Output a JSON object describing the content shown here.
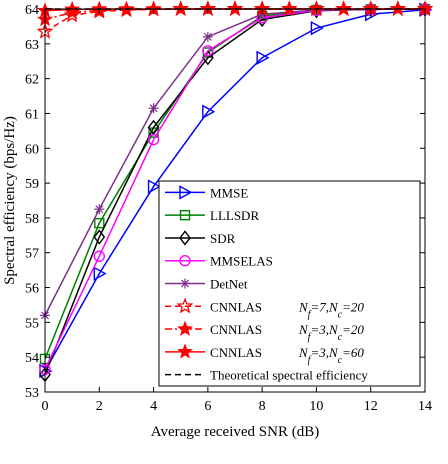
{
  "chart_data": {
    "type": "line",
    "xlabel": "Average received SNR (dB)",
    "ylabel": "Spectral efficiency (bps/Hz)",
    "xlim": [
      0,
      14
    ],
    "ylim": [
      53,
      64
    ],
    "xticks": [
      0,
      2,
      4,
      6,
      8,
      10,
      12,
      14
    ],
    "yticks": [
      53,
      54,
      55,
      56,
      57,
      58,
      59,
      60,
      61,
      62,
      63,
      64
    ],
    "grid": false,
    "legend_position": "bottom-right",
    "series": [
      {
        "name": "MMSE",
        "color": "#0000ff",
        "marker": "triangle-right",
        "dash": "solid",
        "x": [
          0,
          2,
          4,
          6,
          8,
          10,
          12,
          14
        ],
        "y": [
          53.6,
          56.4,
          58.9,
          61.05,
          62.6,
          63.45,
          63.85,
          63.98
        ]
      },
      {
        "name": "LLLSDR",
        "color": "#008000",
        "marker": "square",
        "dash": "solid",
        "x": [
          0,
          2,
          4,
          6,
          8,
          10,
          12,
          14
        ],
        "y": [
          53.95,
          57.85,
          60.45,
          62.75,
          63.8,
          63.97,
          63.99,
          64.0
        ]
      },
      {
        "name": "SDR",
        "color": "#000000",
        "marker": "diamond",
        "dash": "solid",
        "x": [
          0,
          2,
          4,
          6,
          8,
          10,
          12,
          14
        ],
        "y": [
          53.5,
          57.45,
          60.6,
          62.6,
          63.7,
          63.95,
          63.99,
          64.0
        ]
      },
      {
        "name": "MMSELAS",
        "color": "#ff00ff",
        "marker": "circle",
        "dash": "solid",
        "x": [
          0,
          2,
          4,
          6,
          8,
          10,
          12,
          14
        ],
        "y": [
          53.65,
          56.9,
          60.25,
          62.8,
          63.75,
          63.96,
          63.99,
          64.0
        ]
      },
      {
        "name": "DetNet",
        "color": "#7e2f8e",
        "marker": "asterisk",
        "dash": "solid",
        "x": [
          0,
          2,
          4,
          6,
          8,
          10,
          12,
          14
        ],
        "y": [
          55.2,
          58.25,
          61.15,
          63.2,
          63.85,
          63.97,
          63.99,
          64.0
        ]
      },
      {
        "name": "CNNLAS",
        "label_sub": "N_f=7,N_c=20",
        "color": "#ff0000",
        "marker": "star-open",
        "dash": "dashed",
        "x": [
          0,
          1,
          2,
          3,
          4,
          5,
          6,
          7,
          8,
          9,
          10,
          11,
          12,
          13,
          14
        ],
        "y": [
          63.35,
          63.82,
          63.93,
          63.97,
          63.99,
          64.0,
          64.0,
          64.0,
          64.0,
          64.0,
          64.0,
          64.0,
          64.0,
          64.0,
          64.0
        ]
      },
      {
        "name": "CNNLAS",
        "label_sub": "N_f=3,N_c=20",
        "color": "#ff0000",
        "marker": "star-filled",
        "dash": "dashdot",
        "x": [
          0,
          1,
          2,
          3,
          4,
          5,
          6,
          7,
          8,
          9,
          10,
          11,
          12,
          13,
          14
        ],
        "y": [
          63.7,
          63.9,
          63.96,
          63.98,
          63.99,
          64.0,
          64.0,
          64.0,
          64.0,
          64.0,
          64.0,
          64.0,
          64.0,
          64.0,
          64.0
        ]
      },
      {
        "name": "CNNLAS",
        "label_sub": "N_f=3,N_c=60",
        "color": "#ff0000",
        "marker": "star-filled",
        "dash": "solid",
        "x": [
          0,
          1,
          2,
          3,
          4,
          5,
          6,
          7,
          8,
          9,
          10,
          11,
          12,
          13,
          14
        ],
        "y": [
          63.95,
          63.99,
          64.0,
          64.0,
          64.0,
          64.0,
          64.0,
          64.0,
          64.0,
          64.0,
          64.0,
          64.0,
          64.0,
          64.0,
          64.0
        ]
      },
      {
        "name": "Theoretical spectral efficiency",
        "color": "#000000",
        "marker": "none",
        "dash": "dashed",
        "x": [
          0,
          14
        ],
        "y": [
          64.0,
          64.0
        ]
      }
    ]
  }
}
